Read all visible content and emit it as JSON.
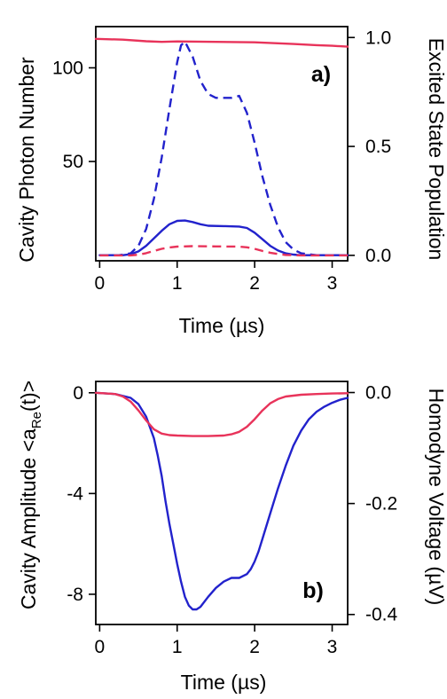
{
  "chart_data": [
    {
      "panel": "a)",
      "type": "line",
      "xlabel": "Time (µs)",
      "ylabel_left": "Cavity Photon Number",
      "ylabel_right": "Excited State Population",
      "xlim": [
        -0.05,
        3.2
      ],
      "ylim_left": [
        -3,
        122
      ],
      "ylim_right": [
        -0.025,
        1.05
      ],
      "xticks": [
        0,
        1,
        2,
        3
      ],
      "xtick_labels": [
        "0",
        "1",
        "2",
        "3"
      ],
      "yticks_left": [
        50,
        100
      ],
      "ytick_labels_left": [
        "50",
        "100"
      ],
      "yticks_right": [
        0.0,
        0.5,
        1.0
      ],
      "ytick_labels_right": [
        "0.0",
        "0.5",
        "1.0"
      ],
      "series": [
        {
          "axis": "left",
          "color": "#2222cc",
          "dash": "dashed",
          "x": [
            0,
            0.25,
            0.4,
            0.5,
            0.6,
            0.7,
            0.8,
            0.9,
            1.0,
            1.05,
            1.1,
            1.2,
            1.3,
            1.4,
            1.5,
            1.6,
            1.7,
            1.8,
            1.9,
            2.0,
            2.1,
            2.2,
            2.3,
            2.4,
            2.5,
            2.6,
            2.8,
            3.0,
            3.2
          ],
          "y": [
            0,
            0,
            1,
            5,
            14,
            30,
            52,
            78,
            103,
            112,
            114,
            106,
            93,
            86,
            84,
            84,
            84,
            85,
            76,
            60,
            42,
            27,
            15,
            7,
            3,
            1,
            0,
            0,
            0
          ]
        },
        {
          "axis": "left",
          "color": "#2222cc",
          "dash": "solid",
          "x": [
            0,
            0.3,
            0.4,
            0.5,
            0.6,
            0.7,
            0.8,
            0.9,
            1.0,
            1.1,
            1.2,
            1.3,
            1.4,
            1.6,
            1.8,
            1.9,
            2.0,
            2.1,
            2.2,
            2.3,
            2.4,
            2.5,
            2.6,
            2.8,
            3.0,
            3.2
          ],
          "y": [
            0,
            0,
            0.5,
            2,
            5,
            9,
            13,
            16.5,
            18.3,
            18.5,
            17.7,
            16.5,
            15.7,
            15.5,
            15.3,
            14.5,
            12,
            8.5,
            5,
            2.5,
            1,
            0.3,
            0,
            0,
            0,
            0
          ]
        },
        {
          "axis": "right",
          "color": "#e8335a",
          "dash": "dashed",
          "x": [
            0,
            0.4,
            0.5,
            0.6,
            0.7,
            0.8,
            0.9,
            1.0,
            1.2,
            1.5,
            1.8,
            1.9,
            2.0,
            2.1,
            2.2,
            2.3,
            2.4,
            2.6,
            3.2
          ],
          "y": [
            0,
            0,
            0.003,
            0.01,
            0.02,
            0.03,
            0.036,
            0.04,
            0.042,
            0.041,
            0.04,
            0.037,
            0.03,
            0.02,
            0.012,
            0.006,
            0.002,
            0,
            0
          ]
        },
        {
          "axis": "right",
          "color": "#e8335a",
          "dash": "solid",
          "x": [
            -0.05,
            0.3,
            0.6,
            0.8,
            1.0,
            1.5,
            2.0,
            2.5,
            2.8,
            3.0,
            3.2
          ],
          "y": [
            0.994,
            0.99,
            0.983,
            0.98,
            0.982,
            0.98,
            0.978,
            0.97,
            0.965,
            0.962,
            0.958
          ]
        }
      ]
    },
    {
      "panel": "b)",
      "type": "line",
      "xlabel": "Time (µs)",
      "ylabel_left_main": "Cavity Amplitude <a",
      "ylabel_left_sub": "Re",
      "ylabel_left_tail": "(t)>",
      "ylabel_right": "Homodyne Voltage (µV)",
      "xlim": [
        -0.05,
        3.2
      ],
      "ylim_left": [
        -9.2,
        0.45
      ],
      "ylim_right": [
        -0.418,
        0.02
      ],
      "xticks": [
        0,
        1,
        2,
        3
      ],
      "xtick_labels": [
        "0",
        "1",
        "2",
        "3"
      ],
      "yticks_left": [
        0,
        -4,
        -8
      ],
      "ytick_labels_left": [
        "0",
        "-4",
        "-8"
      ],
      "yticks_right": [
        0.0,
        -0.2,
        -0.4
      ],
      "ytick_labels_right": [
        "0.0",
        "-0.2",
        "-0.4"
      ],
      "series": [
        {
          "axis": "left",
          "color": "#2222cc",
          "dash": "solid",
          "x": [
            -0.05,
            0.2,
            0.4,
            0.5,
            0.6,
            0.7,
            0.75,
            0.8,
            0.85,
            0.9,
            0.95,
            1.0,
            1.05,
            1.1,
            1.15,
            1.2,
            1.25,
            1.3,
            1.4,
            1.5,
            1.6,
            1.7,
            1.8,
            1.9,
            1.95,
            2.0,
            2.05,
            2.1,
            2.2,
            2.3,
            2.4,
            2.5,
            2.6,
            2.7,
            2.8,
            2.9,
            3.0,
            3.1,
            3.2
          ],
          "y": [
            0,
            -0.05,
            -0.2,
            -0.45,
            -0.95,
            -1.8,
            -2.5,
            -3.3,
            -4.3,
            -5.2,
            -6.0,
            -6.8,
            -7.5,
            -8.1,
            -8.45,
            -8.6,
            -8.6,
            -8.5,
            -8.1,
            -7.75,
            -7.5,
            -7.35,
            -7.35,
            -7.2,
            -7.0,
            -6.7,
            -6.3,
            -5.8,
            -4.8,
            -3.8,
            -2.9,
            -2.1,
            -1.5,
            -1.05,
            -0.75,
            -0.55,
            -0.4,
            -0.28,
            -0.2
          ]
        },
        {
          "axis": "left",
          "color": "#e8335a",
          "dash": "solid",
          "x": [
            -0.05,
            0.2,
            0.3,
            0.4,
            0.5,
            0.6,
            0.7,
            0.8,
            0.9,
            1.0,
            1.2,
            1.4,
            1.6,
            1.7,
            1.8,
            1.9,
            2.0,
            2.1,
            2.2,
            2.3,
            2.4,
            2.6,
            2.8,
            3.0,
            3.2
          ],
          "y": [
            0,
            -0.05,
            -0.15,
            -0.35,
            -0.7,
            -1.1,
            -1.45,
            -1.62,
            -1.68,
            -1.7,
            -1.72,
            -1.72,
            -1.7,
            -1.65,
            -1.55,
            -1.35,
            -1.05,
            -0.7,
            -0.42,
            -0.25,
            -0.15,
            -0.08,
            -0.05,
            -0.03,
            -0.02
          ]
        }
      ]
    }
  ]
}
